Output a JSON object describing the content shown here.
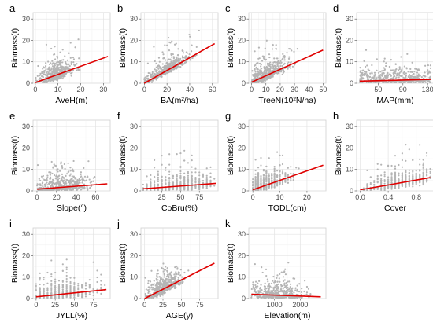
{
  "colors": {
    "points": "#b5b5b5",
    "fit_line": "#e00000"
  },
  "chart_data": [
    {
      "panel": "a",
      "type": "scatter",
      "xlabel": "AveH(m)",
      "ylabel": "Biomass(t)",
      "xlim": [
        -1,
        33
      ],
      "ylim": [
        0,
        33
      ],
      "xticks": [
        {
          "v": 0,
          "label": "0"
        },
        {
          "v": 10,
          "label": "10"
        },
        {
          "v": 20,
          "label": "20"
        },
        {
          "v": 30,
          "label": "30"
        }
      ],
      "yticks": [
        {
          "v": 0,
          "label": "0"
        },
        {
          "v": 10,
          "label": "10"
        },
        {
          "v": 20,
          "label": "20"
        },
        {
          "v": 30,
          "label": "30"
        }
      ],
      "points": {
        "xmin": 0,
        "xmax": 24,
        "xmean": 9,
        "xsd": 4,
        "noise": 3,
        "dist": "normal"
      },
      "fit": {
        "x": [
          0,
          32
        ],
        "y": [
          0.3,
          12.5
        ]
      }
    },
    {
      "panel": "b",
      "type": "scatter",
      "xlabel": "BA(m²/ha)",
      "ylabel": "Biomass(t)",
      "xlim": [
        -3,
        65
      ],
      "ylim": [
        0,
        33
      ],
      "xticks": [
        {
          "v": 0,
          "label": "0"
        },
        {
          "v": 20,
          "label": "20"
        },
        {
          "v": 40,
          "label": "40"
        },
        {
          "v": 60,
          "label": "60"
        }
      ],
      "yticks": [
        {
          "v": 0,
          "label": "0"
        },
        {
          "v": 10,
          "label": "10"
        },
        {
          "v": 20,
          "label": "20"
        },
        {
          "v": 30,
          "label": "30"
        }
      ],
      "points": {
        "xmin": 0,
        "xmax": 55,
        "xmean": 20,
        "xsd": 10,
        "noise": 2,
        "dist": "normal"
      },
      "fit": {
        "x": [
          0,
          62
        ],
        "y": [
          0,
          18.5
        ]
      }
    },
    {
      "panel": "c",
      "type": "scatter",
      "xlabel": "TreeN(10²N/ha)",
      "ylabel": "Biomass(t)",
      "xlim": [
        -2,
        52
      ],
      "ylim": [
        0,
        33
      ],
      "xticks": [
        {
          "v": 0,
          "label": "0"
        },
        {
          "v": 10,
          "label": "10"
        },
        {
          "v": 20,
          "label": "20"
        },
        {
          "v": 30,
          "label": "30"
        },
        {
          "v": 40,
          "label": "40"
        },
        {
          "v": 50,
          "label": "50"
        }
      ],
      "yticks": [
        {
          "v": 0,
          "label": "0"
        },
        {
          "v": 10,
          "label": "10"
        },
        {
          "v": 20,
          "label": "20"
        },
        {
          "v": 30,
          "label": "30"
        }
      ],
      "points": {
        "xmin": 0,
        "xmax": 45,
        "xmean": 10,
        "xsd": 8,
        "noise": 3,
        "dist": "normal"
      },
      "fit": {
        "x": [
          0,
          50
        ],
        "y": [
          0.5,
          15.5
        ]
      }
    },
    {
      "panel": "d",
      "type": "scatter",
      "xlabel": "MAP(mm)",
      "ylabel": "Biomass(t)",
      "xlim": [
        15,
        140
      ],
      "ylim": [
        0,
        33
      ],
      "xticks": [
        {
          "v": 50,
          "label": "50"
        },
        {
          "v": 90,
          "label": "90"
        },
        {
          "v": 130,
          "label": "130"
        }
      ],
      "yticks": [
        {
          "v": 0,
          "label": "0"
        },
        {
          "v": 10,
          "label": "10"
        },
        {
          "v": 20,
          "label": "20"
        },
        {
          "v": 30,
          "label": "30"
        }
      ],
      "points": {
        "xmin": 20,
        "xmax": 135,
        "xmean": 80,
        "xsd": 30,
        "noise": 3,
        "dist": "uniform"
      },
      "fit": {
        "x": [
          20,
          135
        ],
        "y": [
          1.0,
          1.8
        ]
      }
    },
    {
      "panel": "e",
      "type": "scatter",
      "xlabel": "Slope(°)",
      "ylabel": "Biomass(t)",
      "xlim": [
        -4,
        75
      ],
      "ylim": [
        0,
        33
      ],
      "xticks": [
        {
          "v": 0,
          "label": "0"
        },
        {
          "v": 20,
          "label": "20"
        },
        {
          "v": 40,
          "label": "40"
        },
        {
          "v": 60,
          "label": "60"
        }
      ],
      "yticks": [
        {
          "v": 0,
          "label": "0"
        },
        {
          "v": 10,
          "label": "10"
        },
        {
          "v": 20,
          "label": "20"
        },
        {
          "v": 30,
          "label": "30"
        }
      ],
      "points": {
        "xmin": 0,
        "xmax": 70,
        "xmean": 25,
        "xsd": 14,
        "noise": 3,
        "dist": "normal"
      },
      "fit": {
        "x": [
          0,
          72
        ],
        "y": [
          0.8,
          3.3
        ]
      }
    },
    {
      "panel": "f",
      "type": "scatter",
      "xlabel": "CoBru(%)",
      "ylabel": "Biomass(t)",
      "xlim": [
        -3,
        100
      ],
      "ylim": [
        0,
        33
      ],
      "xticks": [
        {
          "v": 25,
          "label": "25"
        },
        {
          "v": 50,
          "label": "50"
        },
        {
          "v": 75,
          "label": "75"
        }
      ],
      "yticks": [
        {
          "v": 0,
          "label": "0"
        },
        {
          "v": 10,
          "label": "10"
        },
        {
          "v": 20,
          "label": "20"
        },
        {
          "v": 30,
          "label": "30"
        }
      ],
      "points": {
        "xmin": 0,
        "xmax": 95,
        "xmean": 45,
        "xsd": 25,
        "noise": 3,
        "dist": "columns",
        "step": 5
      },
      "fit": {
        "x": [
          0,
          97
        ],
        "y": [
          1.0,
          3.5
        ]
      }
    },
    {
      "panel": "g",
      "type": "scatter",
      "xlabel": "TODL(cm)",
      "ylabel": "Biomass(t)",
      "xlim": [
        -1.5,
        27
      ],
      "ylim": [
        0,
        33
      ],
      "xticks": [
        {
          "v": 0,
          "label": "0"
        },
        {
          "v": 10,
          "label": "10"
        },
        {
          "v": 20,
          "label": "20"
        }
      ],
      "yticks": [
        {
          "v": 0,
          "label": "0"
        },
        {
          "v": 10,
          "label": "10"
        },
        {
          "v": 20,
          "label": "20"
        },
        {
          "v": 30,
          "label": "30"
        }
      ],
      "points": {
        "xmin": 0,
        "xmax": 25,
        "xmean": 4,
        "xsd": 5,
        "noise": 3,
        "dist": "columns",
        "step": 1
      },
      "fit": {
        "x": [
          0,
          26
        ],
        "y": [
          0.5,
          12.0
        ]
      }
    },
    {
      "panel": "h",
      "type": "scatter",
      "xlabel": "Cover",
      "ylabel": "Biomass(t)",
      "xlim": [
        -0.05,
        1.05
      ],
      "ylim": [
        0,
        33
      ],
      "xticks": [
        {
          "v": 0,
          "label": "0.0"
        },
        {
          "v": 0.4,
          "label": "0.4"
        },
        {
          "v": 0.8,
          "label": "0.8"
        }
      ],
      "yticks": [
        {
          "v": 0,
          "label": "0"
        },
        {
          "v": 10,
          "label": "10"
        },
        {
          "v": 20,
          "label": "20"
        },
        {
          "v": 30,
          "label": "30"
        }
      ],
      "points": {
        "xmin": 0,
        "xmax": 1.0,
        "xmean": 0.6,
        "xsd": 0.25,
        "noise": 3,
        "dist": "columns",
        "step": 0.05
      },
      "fit": {
        "x": [
          0,
          1.0
        ],
        "y": [
          0.5,
          6.2
        ]
      }
    },
    {
      "panel": "i",
      "type": "scatter",
      "xlabel": "JYLL(%)",
      "ylabel": "Biomass(t)",
      "xlim": [
        -4,
        97
      ],
      "ylim": [
        0,
        33
      ],
      "xticks": [
        {
          "v": 0,
          "label": "0"
        },
        {
          "v": 25,
          "label": "25"
        },
        {
          "v": 50,
          "label": "50"
        },
        {
          "v": 75,
          "label": "75"
        }
      ],
      "yticks": [
        {
          "v": 0,
          "label": "0"
        },
        {
          "v": 10,
          "label": "10"
        },
        {
          "v": 20,
          "label": "20"
        },
        {
          "v": 30,
          "label": "30"
        }
      ],
      "points": {
        "xmin": 0,
        "xmax": 92,
        "xmean": 30,
        "xsd": 22,
        "noise": 3,
        "dist": "columns",
        "step": 5
      },
      "fit": {
        "x": [
          0,
          92
        ],
        "y": [
          0.8,
          4.2
        ]
      }
    },
    {
      "panel": "j",
      "type": "scatter",
      "xlabel": "AGE(y)",
      "ylabel": "Biomass(t)",
      "xlim": [
        -5,
        100
      ],
      "ylim": [
        0,
        33
      ],
      "xticks": [
        {
          "v": 0,
          "label": "0"
        },
        {
          "v": 25,
          "label": "25"
        },
        {
          "v": 50,
          "label": "50"
        },
        {
          "v": 75,
          "label": "75"
        }
      ],
      "yticks": [
        {
          "v": 0,
          "label": "0"
        },
        {
          "v": 10,
          "label": "10"
        },
        {
          "v": 20,
          "label": "20"
        },
        {
          "v": 30,
          "label": "30"
        }
      ],
      "points": {
        "xmin": 0,
        "xmax": 95,
        "xmean": 25,
        "xsd": 12,
        "noise": 3,
        "dist": "normal"
      },
      "fit": {
        "x": [
          0,
          95
        ],
        "y": [
          0,
          16.5
        ]
      }
    },
    {
      "panel": "k",
      "type": "scatter",
      "xlabel": "Elevation(m)",
      "ylabel": "Biomass(t)",
      "xlim": [
        0,
        3000
      ],
      "ylim": [
        0,
        33
      ],
      "xticks": [
        {
          "v": 1000,
          "label": "1000"
        },
        {
          "v": 2000,
          "label": "2000"
        }
      ],
      "yticks": [
        {
          "v": 0,
          "label": "0"
        },
        {
          "v": 10,
          "label": "10"
        },
        {
          "v": 20,
          "label": "20"
        },
        {
          "v": 30,
          "label": "30"
        }
      ],
      "points": {
        "xmin": 100,
        "xmax": 2800,
        "xmean": 1100,
        "xsd": 500,
        "noise": 3,
        "dist": "normal"
      },
      "fit": {
        "x": [
          100,
          2800
        ],
        "y": [
          2.0,
          0.8
        ]
      }
    }
  ]
}
